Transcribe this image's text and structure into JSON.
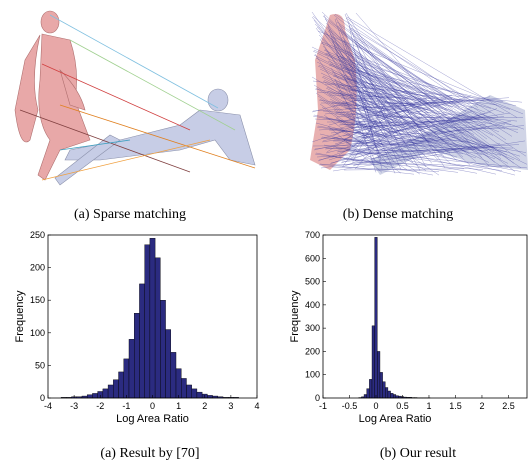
{
  "top_captions": [
    "(a) Sparse matching",
    "(b) Dense matching"
  ],
  "chart_data": [
    {
      "type": "histogram",
      "caption": "(a) Result by [70]",
      "xlabel": "Log Area Ratio",
      "ylabel": "Frequency",
      "color": "#2b2b80",
      "bins": [
        -3.5,
        -3.3,
        -3.1,
        -2.9,
        -2.7,
        -2.5,
        -2.3,
        -2.1,
        -1.9,
        -1.7,
        -1.5,
        -1.3,
        -1.1,
        -0.9,
        -0.7,
        -0.5,
        -0.3,
        -0.1,
        0.1,
        0.3,
        0.5,
        0.7,
        0.9,
        1.1,
        1.3,
        1.5,
        1.7,
        1.9,
        2.1,
        2.3,
        2.5,
        2.7,
        2.9,
        3.1,
        3.3
      ],
      "values": [
        1,
        1,
        2,
        2,
        3,
        5,
        7,
        10,
        14,
        20,
        28,
        40,
        60,
        90,
        130,
        175,
        235,
        245,
        215,
        150,
        105,
        70,
        45,
        30,
        20,
        14,
        9,
        6,
        4,
        3,
        2,
        1,
        1,
        1
      ],
      "xlim": [
        -4,
        4
      ],
      "xticks": [
        -4,
        -3,
        -2,
        -1,
        0,
        1,
        2,
        3,
        4
      ],
      "ylim": [
        0,
        250
      ],
      "yticks": [
        0,
        50,
        100,
        150,
        200,
        250
      ]
    },
    {
      "type": "histogram",
      "caption": "(b) Our result",
      "xlabel": "Log Area Ratio",
      "ylabel": "Frequency",
      "color": "#2b2b80",
      "bins": [
        -0.325,
        -0.275,
        -0.225,
        -0.175,
        -0.125,
        -0.075,
        -0.025,
        0.025,
        0.075,
        0.125,
        0.175,
        0.225,
        0.275,
        0.325,
        0.375,
        0.425,
        0.475,
        0.525,
        0.575,
        0.625,
        0.675,
        0.725,
        0.775,
        0.825,
        0.875,
        0.925,
        0.975,
        1.025
      ],
      "values": [
        2,
        5,
        15,
        40,
        80,
        310,
        690,
        200,
        110,
        70,
        45,
        30,
        20,
        15,
        10,
        8,
        6,
        4,
        3,
        3,
        2,
        2,
        1,
        1,
        1,
        1,
        1
      ],
      "xlim": [
        -1,
        2.85
      ],
      "xticks": [
        -1,
        -0.5,
        0,
        0.5,
        1,
        1.5,
        2,
        2.5
      ],
      "ylim": [
        0,
        700
      ],
      "yticks": [
        0,
        100,
        200,
        300,
        400,
        500,
        600,
        700
      ]
    }
  ]
}
